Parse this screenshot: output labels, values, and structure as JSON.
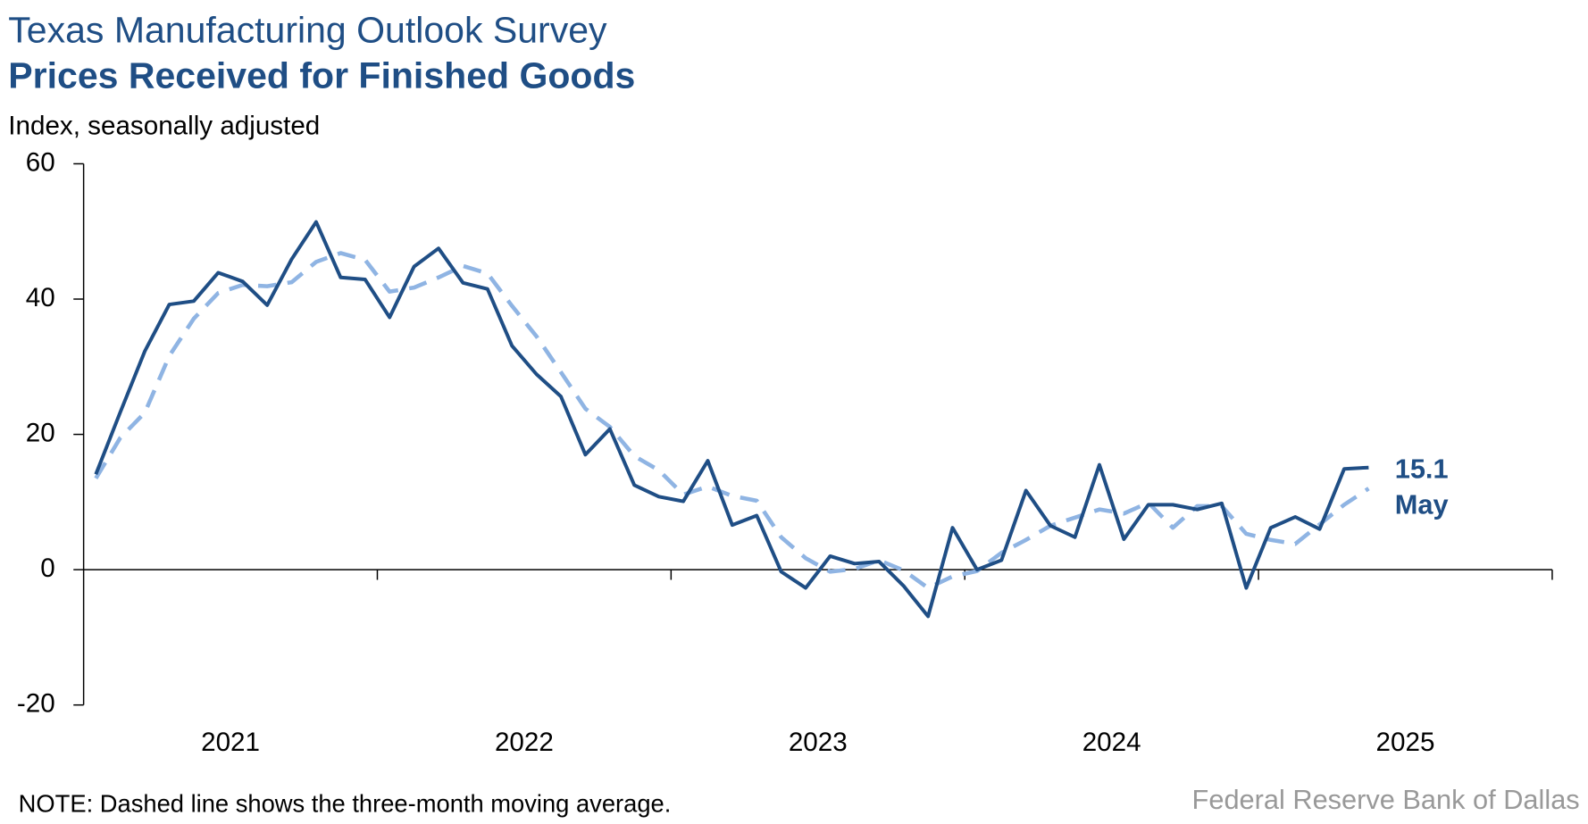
{
  "chart_data": {
    "type": "line",
    "title": "Texas Manufacturing Outlook Survey",
    "subtitle": "Prices Received for Finished Goods",
    "y_label": "Index, seasonally adjusted",
    "note": "NOTE: Dashed line shows the three-month moving average.",
    "source": "Federal Reserve Bank of Dallas",
    "annotation": "May",
    "x": [
      "2021-01",
      "2021-02",
      "2021-03",
      "2021-04",
      "2021-05",
      "2021-06",
      "2021-07",
      "2021-08",
      "2021-09",
      "2021-10",
      "2021-11",
      "2021-12",
      "2022-01",
      "2022-02",
      "2022-03",
      "2022-04",
      "2022-05",
      "2022-06",
      "2022-07",
      "2022-08",
      "2022-09",
      "2022-10",
      "2022-11",
      "2022-12",
      "2023-01",
      "2023-02",
      "2023-03",
      "2023-04",
      "2023-05",
      "2023-06",
      "2023-07",
      "2023-08",
      "2023-09",
      "2023-10",
      "2023-11",
      "2023-12",
      "2024-01",
      "2024-02",
      "2024-03",
      "2024-04",
      "2024-05",
      "2024-06",
      "2024-07",
      "2024-08",
      "2024-09",
      "2024-10",
      "2024-11",
      "2024-12",
      "2025-01",
      "2025-02",
      "2025-03",
      "2025-04",
      "2025-05"
    ],
    "series": [
      {
        "color": "#1f4e85",
        "dashed": false,
        "values": [
          14.1,
          23.3,
          32.3,
          39.2,
          39.7,
          43.9,
          42.6,
          39.1,
          45.9,
          51.4,
          43.2,
          42.9,
          37.3,
          44.8,
          47.5,
          42.4,
          41.5,
          33.1,
          28.9,
          25.6,
          17.0,
          20.8,
          12.5,
          10.8,
          10.1,
          16.1,
          6.6,
          8.0,
          -0.3,
          -2.7,
          2.0,
          0.9,
          1.2,
          -2.4,
          -6.9,
          6.2,
          0,
          1.4,
          11.7,
          6.5,
          4.8,
          15.5,
          4.5,
          9.6,
          9.6,
          8.9,
          9.8,
          -2.7,
          6.2,
          7.8,
          6.0,
          14.9,
          15.1
        ]
      },
      {
        "color": "#8fb4e3",
        "dashed": true,
        "values": [
          13.5,
          19.5,
          23.2,
          31.6,
          37.1,
          40.9,
          42.1,
          41.9,
          42.5,
          45.5,
          46.8,
          45.8,
          41.1,
          41.7,
          43.2,
          44.9,
          43.8,
          39.0,
          34.5,
          29.2,
          23.8,
          21.1,
          16.8,
          14.7,
          11.1,
          12.3,
          10.9,
          10.2,
          4.8,
          1.7,
          -0.3,
          0.1,
          1.4,
          -0.1,
          -2.7,
          -1.0,
          -0.2,
          2.5,
          4.4,
          6.5,
          7.7,
          8.9,
          8.3,
          9.9,
          6.2,
          9.4,
          9.4,
          5.3,
          4.4,
          3.8,
          6.7,
          9.6,
          12.0
        ]
      }
    ],
    "xlim": [
      2021,
      2026
    ],
    "xticks": [
      2022,
      2023,
      2024,
      2025,
      2026
    ],
    "xlabels": [
      {
        "value": 2021.5,
        "label": "2021"
      },
      {
        "value": 2022.5,
        "label": "2022"
      },
      {
        "value": 2023.5,
        "label": "2023"
      },
      {
        "value": 2024.5,
        "label": "2024"
      },
      {
        "value": 2025.5,
        "label": "2025"
      }
    ],
    "ylim": [
      -20,
      60
    ],
    "yticks": [
      -20,
      0,
      20,
      40,
      60
    ],
    "grid": false
  }
}
